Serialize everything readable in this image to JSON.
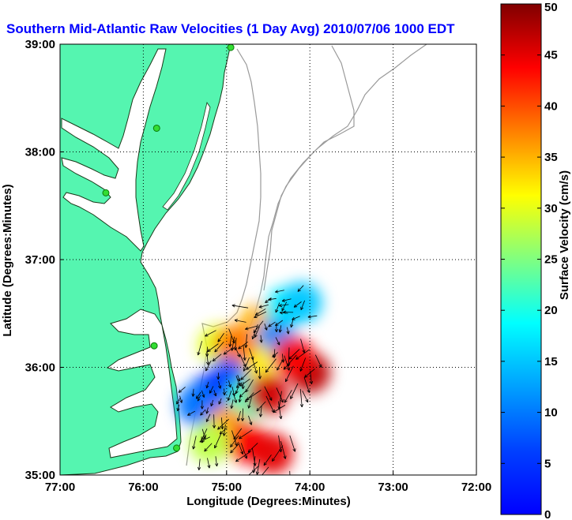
{
  "chart_data": {
    "type": "heatmap",
    "subtype": "surface-current-vector-map",
    "title": "Southern Mid-Atlantic Raw Velocities (1 Day Avg) 2010/07/06 1000 EDT",
    "xlabel": "Longitude (Degrees:Minutes)",
    "ylabel": "Latitude (Degrees:Minutes)",
    "x_ticks": [
      {
        "value": -77,
        "label": "77:00"
      },
      {
        "value": -76,
        "label": "76:00"
      },
      {
        "value": -75,
        "label": "75:00"
      },
      {
        "value": -74,
        "label": "74:00"
      },
      {
        "value": -73,
        "label": "73:00"
      },
      {
        "value": -72,
        "label": "72:00"
      }
    ],
    "y_ticks": [
      {
        "value": 35,
        "label": "35:00"
      },
      {
        "value": 36,
        "label": "36:00"
      },
      {
        "value": 37,
        "label": "37:00"
      },
      {
        "value": 38,
        "label": "38:00"
      },
      {
        "value": 39,
        "label": "39:00"
      }
    ],
    "xlim": [
      -77,
      -72
    ],
    "ylim": [
      35,
      39
    ],
    "grid": true,
    "colorbar": {
      "label": "Surface Velocity (cm/s)",
      "range": [
        0,
        50
      ],
      "ticks": [
        "0",
        "5",
        "10",
        "15",
        "20",
        "25",
        "30",
        "35",
        "40",
        "45",
        "50"
      ],
      "colormap": "jet"
    },
    "stations": [
      {
        "lon": -74.95,
        "lat": 38.97
      },
      {
        "lon": -75.84,
        "lat": 38.22
      },
      {
        "lon": -76.45,
        "lat": 37.62
      },
      {
        "lon": -75.87,
        "lat": 36.2
      },
      {
        "lon": -75.6,
        "lat": 35.25
      }
    ],
    "speed_regions": [
      {
        "lon": -74.6,
        "lat": 36.4,
        "speed": 35
      },
      {
        "lon": -74.3,
        "lat": 36.55,
        "speed": 18
      },
      {
        "lon": -74.1,
        "lat": 36.6,
        "speed": 16
      },
      {
        "lon": -74.4,
        "lat": 36.25,
        "speed": 13
      },
      {
        "lon": -74.7,
        "lat": 36.05,
        "speed": 32
      },
      {
        "lon": -75.1,
        "lat": 36.2,
        "speed": 30
      },
      {
        "lon": -74.9,
        "lat": 36.2,
        "speed": 38
      },
      {
        "lon": -75.0,
        "lat": 35.9,
        "speed": 10
      },
      {
        "lon": -75.2,
        "lat": 35.75,
        "speed": 9
      },
      {
        "lon": -75.35,
        "lat": 35.65,
        "speed": 12
      },
      {
        "lon": -74.75,
        "lat": 35.7,
        "speed": 22
      },
      {
        "lon": -74.5,
        "lat": 35.75,
        "speed": 46
      },
      {
        "lon": -74.0,
        "lat": 35.95,
        "speed": 47
      },
      {
        "lon": -74.2,
        "lat": 36.1,
        "speed": 44
      },
      {
        "lon": -75.0,
        "lat": 35.45,
        "speed": 36
      },
      {
        "lon": -74.75,
        "lat": 35.3,
        "speed": 44
      },
      {
        "lon": -74.45,
        "lat": 35.2,
        "speed": 45
      },
      {
        "lon": -75.2,
        "lat": 35.3,
        "speed": 28
      }
    ]
  },
  "colors": {
    "land": "#55f5b0",
    "water": "#ffffff",
    "coastline": "#1a3a1a",
    "bathymetry": "#9a9a9a",
    "station": "#33dd33",
    "arrows": "#000000",
    "title": "#0000ff"
  }
}
